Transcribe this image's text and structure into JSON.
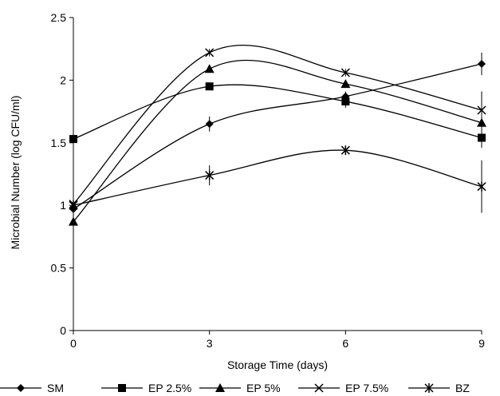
{
  "chart_data": {
    "type": "line",
    "title": "",
    "xlabel": "Storage Time (days)",
    "ylabel": "Microbial Number (log CFU/ml)",
    "x": [
      0,
      3,
      6,
      9
    ],
    "x_ticks": [
      "0",
      "3",
      "6",
      "9"
    ],
    "ylim": [
      0,
      2.5
    ],
    "y_ticks": [
      "0",
      "0.5",
      "1",
      "1.5",
      "2",
      "2.5"
    ],
    "grid": false,
    "legend_position": "bottom",
    "line_color": "#000000",
    "smooth": true,
    "series": [
      {
        "name": "SM",
        "marker": "diamond",
        "values": [
          0.97,
          1.65,
          1.87,
          2.13
        ],
        "errors": [
          0.03,
          0.06,
          0.04,
          0.09
        ]
      },
      {
        "name": "EP 2.5%",
        "marker": "square",
        "values": [
          1.53,
          1.95,
          1.83,
          1.54
        ],
        "errors": [
          0.03,
          0.03,
          0.05,
          0.08
        ]
      },
      {
        "name": "EP 5%",
        "marker": "triangle",
        "values": [
          0.87,
          2.09,
          1.97,
          1.66
        ],
        "errors": [
          0.04,
          0.03,
          0.03,
          0.08
        ]
      },
      {
        "name": "EP 7.5%",
        "marker": "x",
        "values": [
          1.01,
          2.22,
          2.06,
          1.76
        ],
        "errors": [
          0.02,
          0.03,
          0.03,
          0.15
        ]
      },
      {
        "name": "BZ",
        "marker": "star",
        "values": [
          1.0,
          1.24,
          1.44,
          1.15
        ],
        "errors": [
          0.03,
          0.08,
          0.03,
          0.21
        ]
      }
    ]
  }
}
